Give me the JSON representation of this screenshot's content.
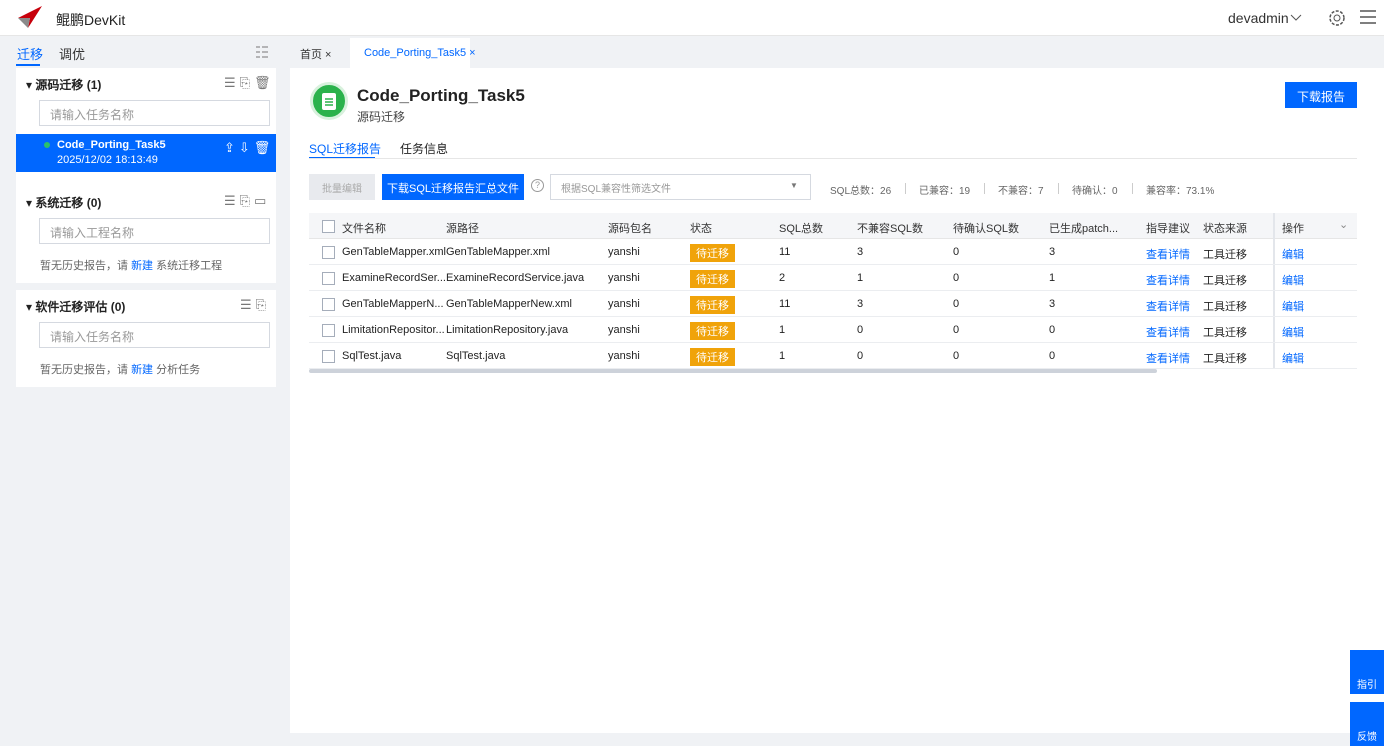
{
  "header": {
    "brand": "鲲鹏DevKit",
    "user": "devadmin"
  },
  "sidebar": {
    "tabs": [
      "迁移",
      "调优"
    ],
    "sections": [
      {
        "title": "源码迁移",
        "count": "(1)",
        "placeholder": "请输入任务名称",
        "task": {
          "name": "Code_Porting_Task5",
          "time": "2025/12/02 18:13:49"
        }
      },
      {
        "title": "系统迁移",
        "count": "(0)",
        "placeholder": "请输入工程名称",
        "empty": {
          "text": "暂无历史报告，请",
          "link": "新建",
          "after": "系统迁移工程"
        }
      },
      {
        "title": "软件迁移评估",
        "count": "(0)",
        "placeholder": "请输入任务名称",
        "empty": {
          "text": "暂无历史报告，请",
          "link": "新建",
          "after": "分析任务"
        }
      }
    ]
  },
  "tabs": [
    "首页",
    "Code_Porting_Task5"
  ],
  "task": {
    "title": "Code_Porting_Task5",
    "subtitle": "源码迁移",
    "download": "下载报告"
  },
  "subtabs": [
    "SQL迁移报告",
    "任务信息"
  ],
  "toolbar": {
    "batch": "批量编辑",
    "download": "下载SQL迁移报告汇总文件",
    "filter": "根据SQL兼容性筛选文件",
    "stats": [
      "SQL总数：26",
      "已兼容：19",
      "不兼容：7",
      "待确认：0",
      "兼容率：73.1%"
    ]
  },
  "table": {
    "columns": [
      "文件名称",
      "源路径",
      "源码包名",
      "状态",
      "SQL总数",
      "不兼容SQL数",
      "待确认SQL数",
      "已生成patch...",
      "指导建议",
      "状态来源",
      "操作"
    ],
    "rows": [
      [
        "GenTableMapper.xml",
        "GenTableMapper.xml",
        "yanshi",
        "待迁移",
        11,
        3,
        0,
        3,
        "查看详情",
        "工具迁移",
        "编辑"
      ],
      [
        "ExamineRecordSer...",
        "ExamineRecordService.java",
        "yanshi",
        "待迁移",
        2,
        1,
        0,
        1,
        "查看详情",
        "工具迁移",
        "编辑"
      ],
      [
        "GenTableMapperN...",
        "GenTableMapperNew.xml",
        "yanshi",
        "待迁移",
        11,
        3,
        0,
        3,
        "查看详情",
        "工具迁移",
        "编辑"
      ],
      [
        "LimitationRepositor...",
        "LimitationRepository.java",
        "yanshi",
        "待迁移",
        1,
        0,
        0,
        0,
        "查看详情",
        "工具迁移",
        "编辑"
      ],
      [
        "SqlTest.java",
        "SqlTest.java",
        "yanshi",
        "待迁移",
        1,
        0,
        0,
        0,
        "查看详情",
        "工具迁移",
        "编辑"
      ]
    ]
  },
  "float": [
    "指引",
    "反馈"
  ]
}
